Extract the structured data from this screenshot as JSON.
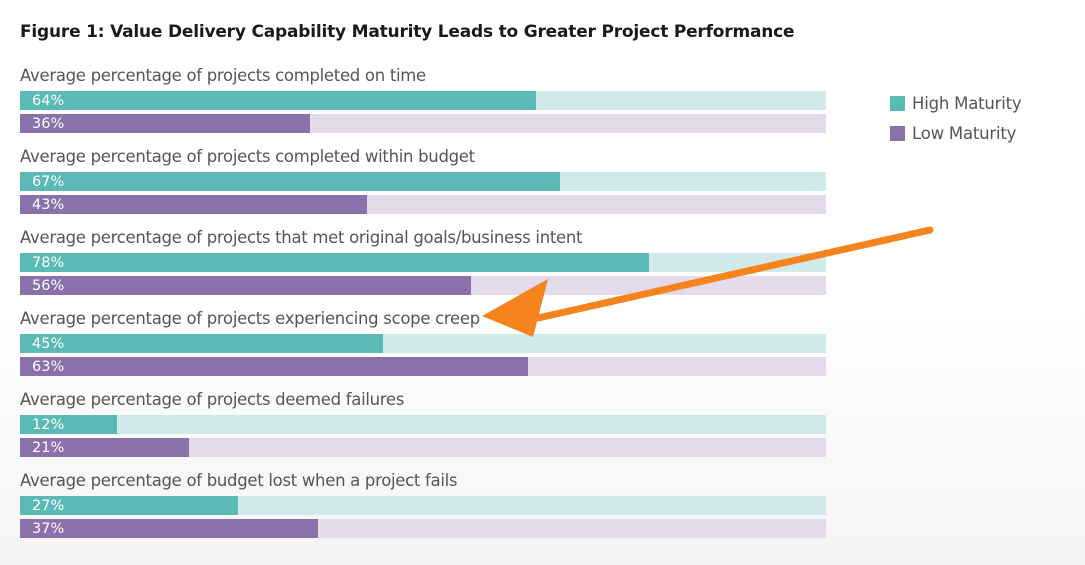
{
  "chart_data": {
    "type": "bar",
    "orientation": "horizontal",
    "title": "Figure 1: Value Delivery Capability Maturity Leads to Greater Project Performance",
    "categories": [
      "Average percentage of projects completed on time",
      "Average percentage of projects completed within budget",
      "Average percentage of projects that met original goals/business intent",
      "Average percentage of projects experiencing scope creep",
      "Average percentage of projects deemed failures",
      "Average percentage of budget lost when a project fails"
    ],
    "series": [
      {
        "name": "High Maturity",
        "values": [
          64,
          67,
          78,
          45,
          12,
          27
        ],
        "labels": [
          "64%",
          "67%",
          "78%",
          "45%",
          "12%",
          "27%"
        ]
      },
      {
        "name": "Low Maturity",
        "values": [
          36,
          43,
          56,
          63,
          21,
          37
        ],
        "labels": [
          "36%",
          "43%",
          "56%",
          "63%",
          "21%",
          "37%"
        ]
      }
    ],
    "xlim": [
      0,
      100
    ],
    "legend": "top-right",
    "grid": false,
    "colors": {
      "High Maturity": "#5bbab5",
      "Low Maturity": "#8a71a9",
      "high_track": "#cfeae9",
      "low_track": "#e3dbe9"
    },
    "annotation": {
      "type": "arrow",
      "color": "#f5841f",
      "points_to": "Average percentage of projects experiencing scope creep"
    }
  }
}
